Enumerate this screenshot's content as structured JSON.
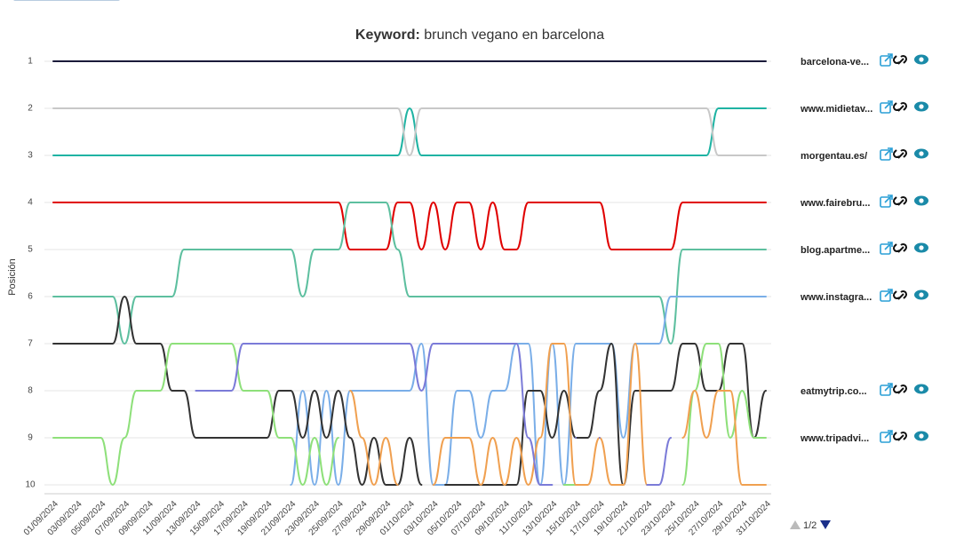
{
  "chart_data": {
    "type": "line",
    "title_label": "Keyword:",
    "title": "brunch vegano en barcelona",
    "y_label": "Posición",
    "pager": "1/2",
    "y_reversed": true,
    "grid": true,
    "ylim": [
      1,
      10
    ],
    "yticks": [
      1,
      2,
      3,
      4,
      5,
      6,
      7,
      8,
      9,
      10
    ],
    "categories": [
      "01/09/2024",
      null,
      "03/09/2024",
      null,
      "05/09/2024",
      null,
      "07/09/2024",
      null,
      "09/09/2024",
      null,
      "11/09/2024",
      null,
      "13/09/2024",
      null,
      "15/09/2024",
      null,
      "17/09/2024",
      null,
      "19/09/2024",
      null,
      "21/09/2024",
      null,
      "23/09/2024",
      null,
      "25/09/2024",
      null,
      "27/09/2024",
      null,
      "29/09/2024",
      null,
      "01/10/2024",
      null,
      "03/10/2024",
      null,
      "05/10/2024",
      null,
      "07/10/2024",
      null,
      "09/10/2024",
      null,
      "11/10/2024",
      null,
      "13/10/2024",
      null,
      "15/10/2024",
      null,
      "17/10/2024",
      null,
      "19/10/2024",
      null,
      "21/10/2024",
      null,
      "23/10/2024",
      null,
      "25/10/2024",
      null,
      "27/10/2024",
      null,
      "29/10/2024",
      null,
      "31/10/2024"
    ],
    "series": [
      {
        "name": "barcelona-ve...",
        "color": "#1a1a3a",
        "values": [
          1,
          1,
          1,
          1,
          1,
          1,
          1,
          1,
          1,
          1,
          1,
          1,
          1,
          1,
          1,
          1,
          1,
          1,
          1,
          1,
          1,
          1,
          1,
          1,
          1,
          1,
          1,
          1,
          1,
          1,
          1,
          1,
          1,
          1,
          1,
          1,
          1,
          1,
          1,
          1,
          1,
          1,
          1,
          1,
          1,
          1,
          1,
          1,
          1,
          1,
          1,
          1,
          1,
          1,
          1,
          1,
          1,
          1,
          1,
          1,
          1
        ]
      },
      {
        "name": "www.midietav...",
        "color": "#1fb3a3",
        "values": [
          3,
          3,
          3,
          3,
          3,
          3,
          3,
          3,
          3,
          3,
          3,
          3,
          3,
          3,
          3,
          3,
          3,
          3,
          3,
          3,
          3,
          3,
          3,
          3,
          3,
          3,
          3,
          3,
          3,
          3,
          2,
          3,
          3,
          3,
          3,
          3,
          3,
          3,
          3,
          3,
          3,
          3,
          3,
          3,
          3,
          3,
          3,
          3,
          3,
          3,
          3,
          3,
          3,
          3,
          3,
          3,
          2,
          2,
          2,
          2,
          2
        ]
      },
      {
        "name": "morgentau.es/",
        "color": "#c8c8c8",
        "values": [
          2,
          2,
          2,
          2,
          2,
          2,
          2,
          2,
          2,
          2,
          2,
          2,
          2,
          2,
          2,
          2,
          2,
          2,
          2,
          2,
          2,
          2,
          2,
          2,
          2,
          2,
          2,
          2,
          2,
          2,
          3,
          2,
          2,
          2,
          2,
          2,
          2,
          2,
          2,
          2,
          2,
          2,
          2,
          2,
          2,
          2,
          2,
          2,
          2,
          2,
          2,
          2,
          2,
          2,
          2,
          2,
          3,
          3,
          3,
          3,
          3
        ]
      },
      {
        "name": "www.fairebru...",
        "color": "#e00000",
        "values": [
          4,
          4,
          4,
          4,
          4,
          4,
          4,
          4,
          4,
          4,
          4,
          4,
          4,
          4,
          4,
          4,
          4,
          4,
          4,
          4,
          4,
          4,
          4,
          4,
          4,
          5,
          5,
          5,
          5,
          4,
          4,
          5,
          4,
          5,
          4,
          4,
          5,
          4,
          5,
          5,
          4,
          4,
          4,
          4,
          4,
          4,
          4,
          5,
          5,
          5,
          5,
          5,
          5,
          4,
          4,
          4,
          4,
          4,
          4,
          4,
          4
        ]
      },
      {
        "name": "blog.apartme...",
        "color": "#5dbf9f",
        "values": [
          6,
          6,
          6,
          6,
          6,
          6,
          7,
          6,
          6,
          6,
          6,
          5,
          5,
          5,
          5,
          5,
          5,
          5,
          5,
          5,
          5,
          6,
          5,
          5,
          5,
          4,
          4,
          4,
          4,
          5,
          6,
          6,
          6,
          6,
          6,
          6,
          6,
          6,
          6,
          6,
          6,
          6,
          6,
          6,
          6,
          6,
          6,
          6,
          6,
          6,
          6,
          6,
          7,
          5,
          5,
          5,
          5,
          5,
          5,
          5,
          5
        ]
      },
      {
        "name": "www.instagra...",
        "color": "#7aaee8",
        "values": [
          null,
          null,
          null,
          null,
          null,
          null,
          null,
          null,
          null,
          null,
          null,
          null,
          null,
          null,
          null,
          null,
          null,
          null,
          null,
          null,
          10,
          8,
          10,
          8,
          10,
          8,
          8,
          8,
          8,
          8,
          8,
          7,
          10,
          10,
          8,
          8,
          9,
          8,
          8,
          7,
          7,
          10,
          7,
          10,
          7,
          7,
          7,
          7,
          9,
          7,
          7,
          7,
          6,
          6,
          6,
          6,
          6,
          6,
          6,
          6,
          6
        ]
      },
      {
        "name": "eatmytrip.co...",
        "color": "#333333",
        "values": [
          7,
          7,
          7,
          7,
          7,
          7,
          6,
          7,
          7,
          7,
          8,
          8,
          9,
          9,
          9,
          9,
          9,
          9,
          9,
          8,
          8,
          9,
          8,
          9,
          8,
          9,
          10,
          9,
          10,
          10,
          9,
          10,
          null,
          10,
          10,
          10,
          10,
          10,
          10,
          10,
          8,
          8,
          9,
          8,
          9,
          9,
          8,
          7,
          10,
          8,
          8,
          8,
          8,
          7,
          7,
          8,
          8,
          7,
          7,
          9,
          8
        ]
      },
      {
        "name": "www.tripadvi...",
        "color": "#8ee07a",
        "values": [
          9,
          9,
          9,
          9,
          9,
          10,
          9,
          8,
          8,
          8,
          7,
          7,
          7,
          7,
          7,
          7,
          8,
          8,
          8,
          9,
          9,
          10,
          9,
          10,
          9,
          null,
          null,
          null,
          null,
          null,
          null,
          null,
          null,
          null,
          null,
          null,
          null,
          null,
          null,
          null,
          null,
          null,
          null,
          10,
          10,
          null,
          null,
          null,
          null,
          null,
          null,
          null,
          null,
          10,
          8,
          7,
          7,
          9,
          8,
          9,
          9
        ]
      },
      {
        "color": "#f0a050",
        "values": [
          null,
          null,
          null,
          null,
          null,
          null,
          null,
          null,
          null,
          null,
          null,
          null,
          null,
          null,
          null,
          null,
          null,
          null,
          null,
          null,
          null,
          null,
          null,
          null,
          null,
          8,
          9,
          10,
          9,
          10,
          null,
          null,
          10,
          9,
          9,
          9,
          10,
          9,
          10,
          9,
          10,
          9,
          7,
          7,
          10,
          10,
          9,
          10,
          10,
          7,
          10,
          null,
          null,
          9,
          8,
          9,
          8,
          8,
          10,
          10,
          10
        ]
      },
      {
        "color": "#7b7bd8",
        "values": [
          null,
          null,
          null,
          null,
          null,
          null,
          null,
          null,
          null,
          null,
          null,
          null,
          8,
          8,
          8,
          8,
          7,
          7,
          7,
          7,
          7,
          7,
          7,
          7,
          7,
          7,
          7,
          7,
          7,
          7,
          7,
          8,
          7,
          7,
          7,
          7,
          7,
          7,
          7,
          7,
          9,
          10,
          10,
          null,
          9,
          null,
          9,
          null,
          null,
          null,
          10,
          10,
          9,
          null,
          null,
          null,
          null,
          null,
          null,
          null,
          null
        ]
      }
    ]
  }
}
